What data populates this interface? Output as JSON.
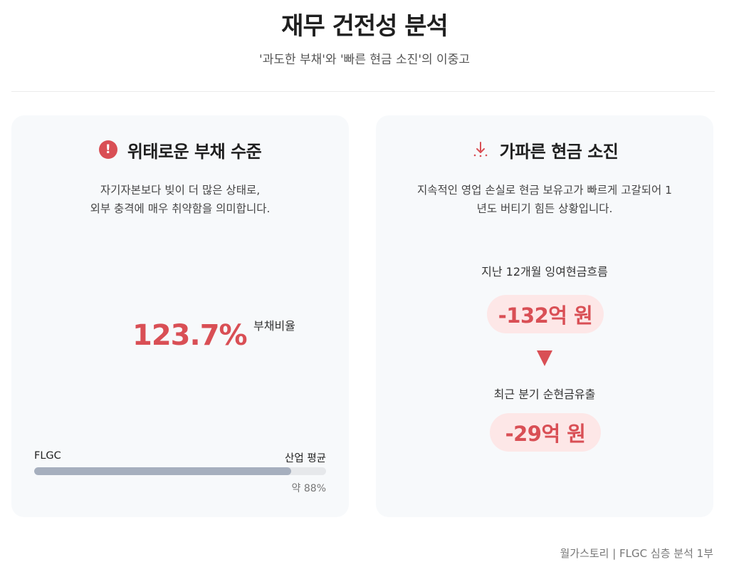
{
  "header": {
    "title": "재무 건전성 분석",
    "subtitle": "'과도한 부채'와 '빠른 현금 소진'의 이중고"
  },
  "left_card": {
    "icon": "alert-circle-icon",
    "title": "위태로운 부채 수준",
    "desc_line1": "자기자본보다 빚이 더 많은 상태로,",
    "desc_line2": "외부 충격에 매우 취약함을 의미합니다.",
    "value": "123.7%",
    "value_label": "부채비율",
    "bar": {
      "left_label": "FLGC",
      "right_label": "산업 평균",
      "fill_fraction": 0.88,
      "note": "약 88%"
    }
  },
  "right_card": {
    "icon": "cash-drain-icon",
    "title": "가파른 현금 소진",
    "desc_line1": "지속적인 영업 손실로 현금 보유고가 빠르게 고갈되어 1",
    "desc_line2": "년도 버티기 힘든 상황입니다.",
    "metric1_label": "지난 12개월 잉여현금흐름",
    "metric1_value": "-132억 원",
    "metric2_label": "최근 분기 순현금유출",
    "metric2_value": "-29억 원"
  },
  "footer": {
    "text": "월가스토리 | FLGC 심층 분석 1부"
  },
  "colors": {
    "accent_red": "#d94f55",
    "pill_bg": "#fde7e7",
    "card_bg": "#f7f9fb",
    "bar_fill": "#a6afbe"
  }
}
